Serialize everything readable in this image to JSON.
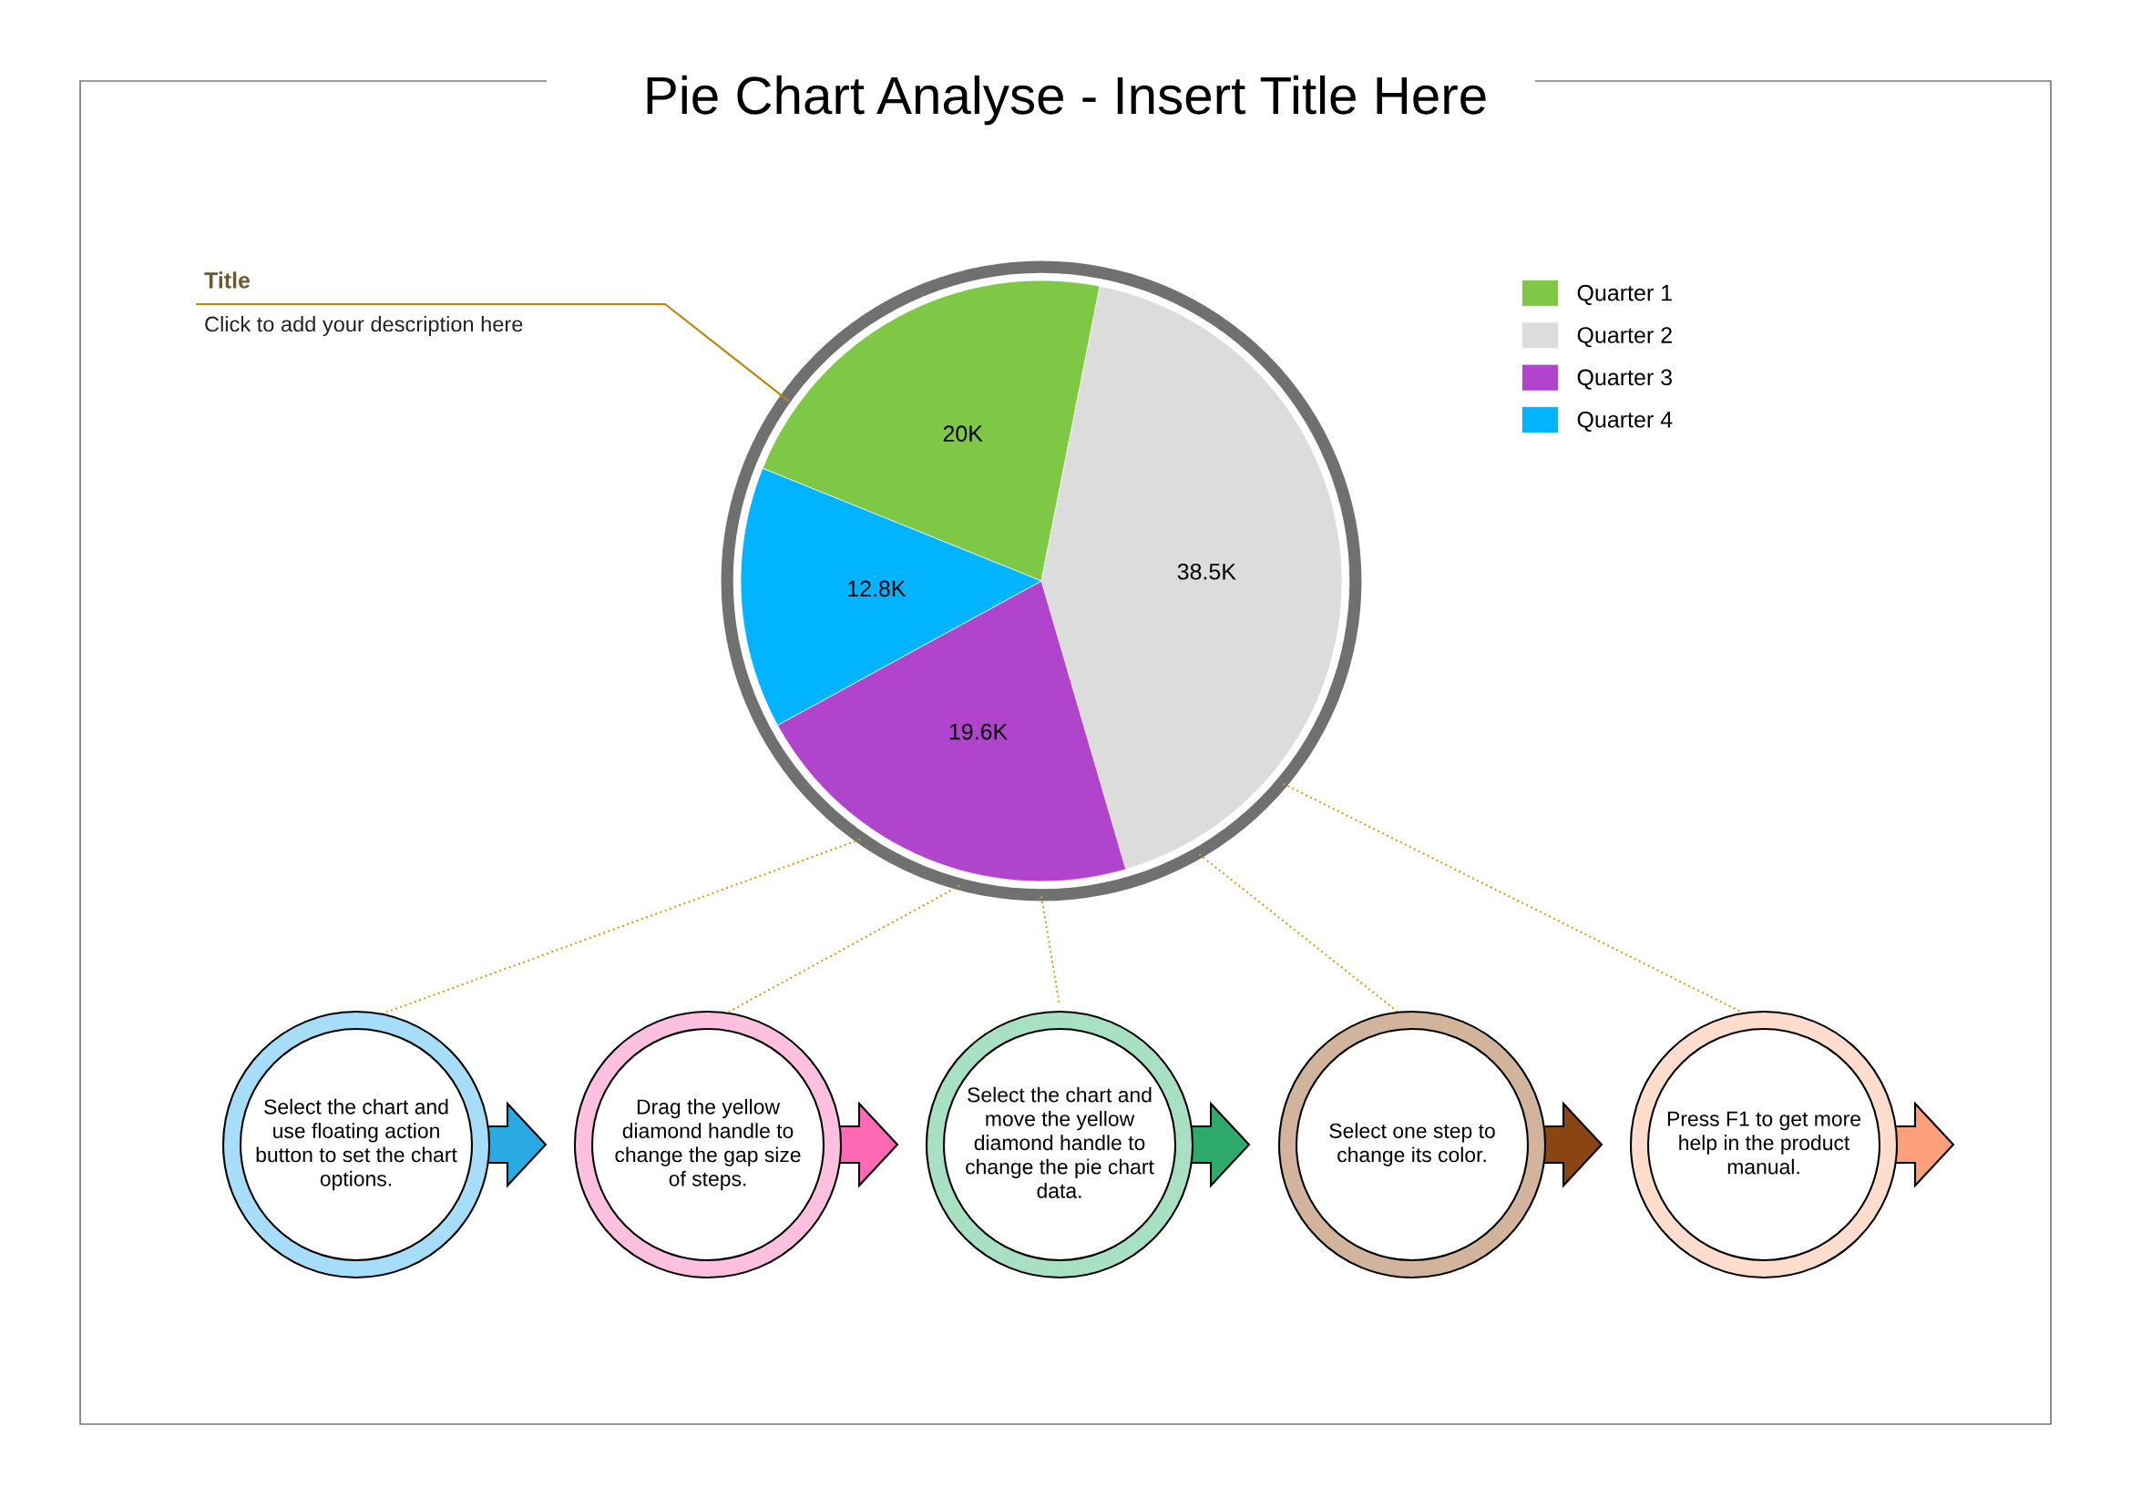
{
  "chart_data": {
    "type": "pie",
    "title": "Pie Chart Analyse - Insert Title Here",
    "categories": [
      "Quarter 1",
      "Quarter 2",
      "Quarter 3",
      "Quarter 4"
    ],
    "values": [
      20,
      38.5,
      19.6,
      12.8
    ],
    "value_labels": [
      "20K",
      "38.5K",
      "19.6K",
      "12.8K"
    ],
    "colors": [
      "#7ec845",
      "#dcdcdc",
      "#b044cc",
      "#00b4ff"
    ],
    "legend": "top right",
    "annotations": [
      "Title",
      "Click to add your description here",
      "Select the chart and\nuse floating action\nbutton to set the chart\noptions.",
      "Drag the yellow\ndiamond handle to\nchange the gap size\nof steps.",
      "Select the chart and\nmove the yellow\ndiamond handle to\nchange the pie chart\ndata.",
      "Select one step to\nchange its color.",
      "Press F1 to get more\nhelp in the product\nmanual."
    ]
  }
}
